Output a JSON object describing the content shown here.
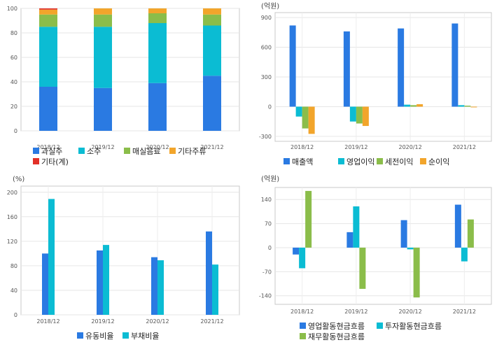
{
  "chart_data": [
    {
      "type": "bar",
      "stacked": true,
      "categories": [
        "2018/12",
        "2019/12",
        "2020/12",
        "2021/12"
      ],
      "ylim": [
        0,
        100
      ],
      "yticks": [
        0,
        20,
        40,
        60,
        80,
        100
      ],
      "unit": "",
      "series": [
        {
          "name": "과실주",
          "color": "#2a7ae2",
          "values": [
            36,
            35,
            39,
            45
          ]
        },
        {
          "name": "소주",
          "color": "#0bbcd3",
          "values": [
            49,
            50,
            49,
            41
          ]
        },
        {
          "name": "매실음료",
          "color": "#8bbd4a",
          "values": [
            10,
            10,
            8,
            9
          ]
        },
        {
          "name": "기타주류",
          "color": "#f2a52b",
          "values": [
            4,
            5,
            4,
            5
          ]
        },
        {
          "name": "기타(계)",
          "color": "#e23028",
          "values": [
            1,
            0,
            0,
            0
          ]
        }
      ],
      "legend_layout": [
        [
          "과실주",
          "소주",
          "매실음료",
          "기타주류"
        ],
        [
          "기타(계)"
        ]
      ]
    },
    {
      "type": "bar",
      "categories": [
        "2018/12",
        "2019/12",
        "2020/12",
        "2021/12"
      ],
      "ylim": [
        -350,
        950
      ],
      "yticks": [
        -300,
        0,
        300,
        600,
        900
      ],
      "unit": "(억원)",
      "series": [
        {
          "name": "매출액",
          "color": "#2a7ae2",
          "values": [
            820,
            760,
            790,
            840
          ]
        },
        {
          "name": "영업이익",
          "color": "#0bbcd3",
          "values": [
            -100,
            -150,
            20,
            15
          ]
        },
        {
          "name": "세전이익",
          "color": "#8bbd4a",
          "values": [
            -220,
            -170,
            15,
            10
          ]
        },
        {
          "name": "순이익",
          "color": "#f2a52b",
          "values": [
            -275,
            -195,
            25,
            -5
          ]
        }
      ],
      "legend_layout": [
        [
          "매출액",
          "영업이익",
          "세전이익",
          "순이익"
        ]
      ]
    },
    {
      "type": "bar",
      "categories": [
        "2018/12",
        "2019/12",
        "2020/12",
        "2021/12"
      ],
      "ylim": [
        0,
        210
      ],
      "yticks": [
        0,
        40,
        80,
        120,
        160,
        200
      ],
      "unit": "(%)",
      "series": [
        {
          "name": "유동비율",
          "color": "#2a7ae2",
          "values": [
            100,
            105,
            94,
            136
          ]
        },
        {
          "name": "부채비율",
          "color": "#0bbcd3",
          "values": [
            189,
            114,
            89,
            82
          ]
        }
      ],
      "legend_layout": [
        [
          "유동비율",
          "부채비율"
        ]
      ]
    },
    {
      "type": "bar",
      "categories": [
        "2018/12",
        "2019/12",
        "2020/12",
        "2021/12"
      ],
      "ylim": [
        -165,
        175
      ],
      "yticks": [
        -140,
        -70,
        0,
        70,
        140
      ],
      "unit": "(억원)",
      "series": [
        {
          "name": "영업활동현금흐름",
          "color": "#2a7ae2",
          "values": [
            -20,
            45,
            80,
            125
          ]
        },
        {
          "name": "투자활동현금흐름",
          "color": "#0bbcd3",
          "values": [
            -60,
            120,
            -5,
            -40
          ]
        },
        {
          "name": "재무활동현금흐름",
          "color": "#8bbd4a",
          "values": [
            165,
            -120,
            -145,
            82
          ]
        }
      ],
      "legend_layout": [
        [
          "영업활동현금흐름",
          "투자활동현금흐름"
        ],
        [
          "재무활동현금흐름"
        ]
      ]
    }
  ]
}
